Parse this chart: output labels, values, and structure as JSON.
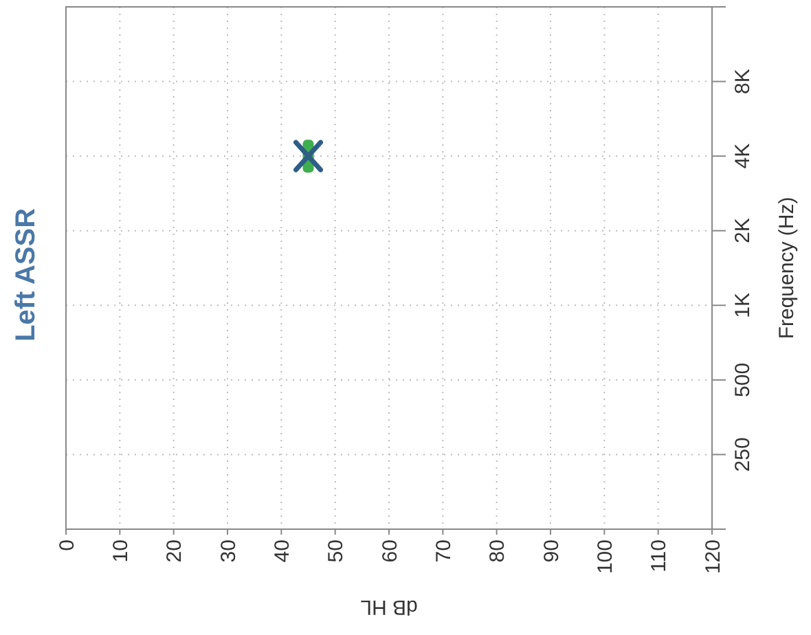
{
  "chart_data": {
    "type": "scatter",
    "title": "Left ASSR",
    "xlabel": "dB HL",
    "ylabel": "Frequency (Hz)",
    "orientation": "horizontal",
    "categories": [
      "8K",
      "4K",
      "2K",
      "1K",
      "500",
      "250"
    ],
    "xlim": [
      0,
      120
    ],
    "xticks": [
      0,
      10,
      20,
      30,
      40,
      50,
      60,
      70,
      80,
      90,
      100,
      110,
      120
    ],
    "grid": true,
    "series": [
      {
        "color": "#3fae4f",
        "marker": "square",
        "values": [
          null,
          45,
          null,
          null,
          null,
          null
        ]
      },
      {
        "color": "#2e5e86",
        "marker": "cross",
        "values": [
          null,
          45,
          null,
          null,
          null,
          null
        ]
      }
    ]
  }
}
